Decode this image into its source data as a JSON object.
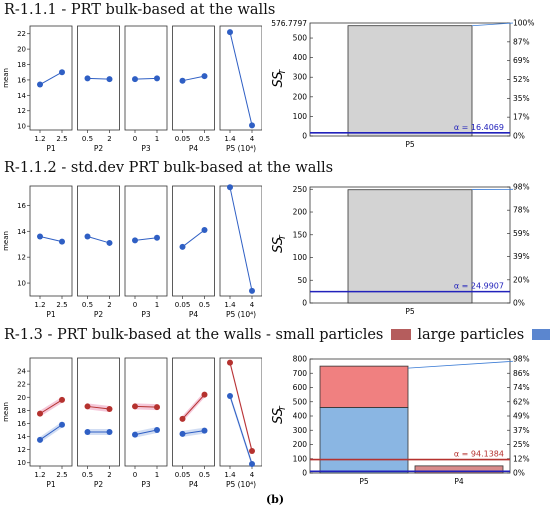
{
  "caption": "(b)",
  "chart_data": [
    {
      "type": "line",
      "title": "R-1.1.1 - PRT bulk-based at the walls",
      "ylabel": "mean",
      "ylim": [
        9.5,
        23
      ],
      "yticks": [
        10,
        12,
        14,
        16,
        18,
        20,
        22
      ],
      "panels": [
        {
          "label": "P1",
          "ticks": [
            "1.2",
            "2.5"
          ],
          "series": [
            {
              "values": [
                15.4,
                17.0
              ]
            }
          ]
        },
        {
          "label": "P2",
          "ticks": [
            "0.5",
            "2"
          ],
          "series": [
            {
              "values": [
                16.2,
                16.1
              ]
            }
          ]
        },
        {
          "label": "P3",
          "ticks": [
            "0",
            "1"
          ],
          "series": [
            {
              "values": [
                16.1,
                16.2
              ]
            }
          ]
        },
        {
          "label": "P4",
          "ticks": [
            "0.05",
            "0.5"
          ],
          "series": [
            {
              "values": [
                15.9,
                16.5
              ]
            }
          ]
        },
        {
          "label": "P5 (10⁴)",
          "ticks": [
            "1.4",
            "4"
          ],
          "series": [
            {
              "values": [
                22.2,
                10.1
              ]
            }
          ]
        }
      ],
      "colors": {
        "series": [
          "#2f5fc4"
        ]
      }
    },
    {
      "type": "bar",
      "ylabel": "SS_T",
      "categories": [
        "P5"
      ],
      "series": [
        {
          "values": [
            563
          ]
        }
      ],
      "ylim": [
        0,
        576.7797
      ],
      "ymax_label": "576.7797",
      "yticks": [
        0,
        100,
        200,
        300,
        400,
        500
      ],
      "right_ticks": [
        "0%",
        "17%",
        "35%",
        "52%",
        "69%",
        "87%",
        "100%"
      ],
      "cumulative": [
        0.976,
        1.0
      ],
      "alpha": {
        "label": "α = 16.4069",
        "value": 16.4069
      },
      "colors": {
        "bars": [
          "#d3d3d3"
        ],
        "alpha": "#2222bb"
      }
    },
    {
      "type": "line",
      "title": "R-1.1.2 - std.dev PRT bulk-based at the walls",
      "ylabel": "mean",
      "ylim": [
        9,
        17.5
      ],
      "yticks": [
        10,
        12,
        14,
        16
      ],
      "panels": [
        {
          "label": "P1",
          "ticks": [
            "1.2",
            "2.5"
          ],
          "series": [
            {
              "values": [
                13.6,
                13.2
              ]
            }
          ]
        },
        {
          "label": "P2",
          "ticks": [
            "0.5",
            "2"
          ],
          "series": [
            {
              "values": [
                13.6,
                13.1
              ]
            }
          ]
        },
        {
          "label": "P3",
          "ticks": [
            "0",
            "1"
          ],
          "series": [
            {
              "values": [
                13.3,
                13.5
              ]
            }
          ]
        },
        {
          "label": "P4",
          "ticks": [
            "0.05",
            "0.5"
          ],
          "series": [
            {
              "values": [
                12.8,
                14.1
              ]
            }
          ]
        },
        {
          "label": "P5 (10⁴)",
          "ticks": [
            "1.4",
            "4"
          ],
          "series": [
            {
              "values": [
                17.4,
                9.4
              ]
            }
          ]
        }
      ],
      "colors": {
        "series": [
          "#2f5fc4"
        ]
      }
    },
    {
      "type": "bar",
      "ylabel": "SS_T",
      "categories": [
        "P5"
      ],
      "series": [
        {
          "values": [
            249
          ]
        }
      ],
      "ylim": [
        0,
        255
      ],
      "yticks": [
        0,
        50,
        100,
        150,
        200,
        250
      ],
      "right_ticks": [
        "0%",
        "20%",
        "39%",
        "59%",
        "78%",
        "98%"
      ],
      "cumulative": [
        0.978,
        0.98
      ],
      "alpha": {
        "label": "α = 24.9907",
        "value": 24.9907
      },
      "colors": {
        "bars": [
          "#d3d3d3"
        ],
        "alpha": "#2222bb"
      }
    },
    {
      "type": "line",
      "title": "R-1.3 - PRT bulk-based at the walls - small particles",
      "legend": [
        {
          "label": "large particles",
          "color": "#b55d5d"
        },
        {
          "label": "",
          "color": "#5b86cf"
        }
      ],
      "ylabel": "mean",
      "ylim": [
        9.5,
        26
      ],
      "yticks": [
        10,
        12,
        14,
        16,
        18,
        20,
        22,
        24
      ],
      "panels": [
        {
          "label": "P1",
          "ticks": [
            "1.2",
            "2.5"
          ],
          "series": [
            {
              "values": [
                17.5,
                19.6
              ]
            },
            {
              "values": [
                13.5,
                15.8
              ]
            }
          ]
        },
        {
          "label": "P2",
          "ticks": [
            "0.5",
            "2"
          ],
          "series": [
            {
              "values": [
                18.6,
                18.2
              ]
            },
            {
              "values": [
                14.7,
                14.7
              ]
            }
          ]
        },
        {
          "label": "P3",
          "ticks": [
            "0",
            "1"
          ],
          "series": [
            {
              "values": [
                18.6,
                18.5
              ]
            },
            {
              "values": [
                14.3,
                15.0
              ]
            }
          ]
        },
        {
          "label": "P4",
          "ticks": [
            "0.05",
            "0.5"
          ],
          "series": [
            {
              "values": [
                16.7,
                20.4
              ]
            },
            {
              "values": [
                14.4,
                14.9
              ]
            }
          ]
        },
        {
          "label": "P5 (10⁴)",
          "ticks": [
            "1.4",
            "4"
          ],
          "series": [
            {
              "values": [
                25.3,
                11.8
              ]
            },
            {
              "values": [
                20.2,
                9.8
              ]
            }
          ]
        }
      ],
      "colors": {
        "series": [
          "#b5322f",
          "#2f5fc4"
        ],
        "band_large": "#f2b9cf",
        "band_small": "#c6d4f0"
      }
    },
    {
      "type": "bar",
      "ylabel": "SS_T",
      "categories": [
        "P5",
        "P4"
      ],
      "stacked": true,
      "series": [
        {
          "name": "large particles",
          "values": [
            290,
            50
          ]
        },
        {
          "values": [
            460,
            0
          ]
        }
      ],
      "ylim": [
        0,
        800
      ],
      "yticks": [
        0,
        100,
        200,
        300,
        400,
        500,
        600,
        700,
        800
      ],
      "right_ticks": [
        "0%",
        "12%",
        "25%",
        "37%",
        "49%",
        "62%",
        "74%",
        "86%",
        "98%"
      ],
      "cumulative": [
        0.92,
        0.98
      ],
      "alpha": {
        "label": "α = 94.1384",
        "value": 94.1384
      },
      "colors": {
        "bars": [
          "#f08080",
          "#8ab6e3"
        ],
        "alpha": "#b5322f",
        "alpha2": "#2222bb",
        "p4": "#d98b8b"
      }
    }
  ]
}
